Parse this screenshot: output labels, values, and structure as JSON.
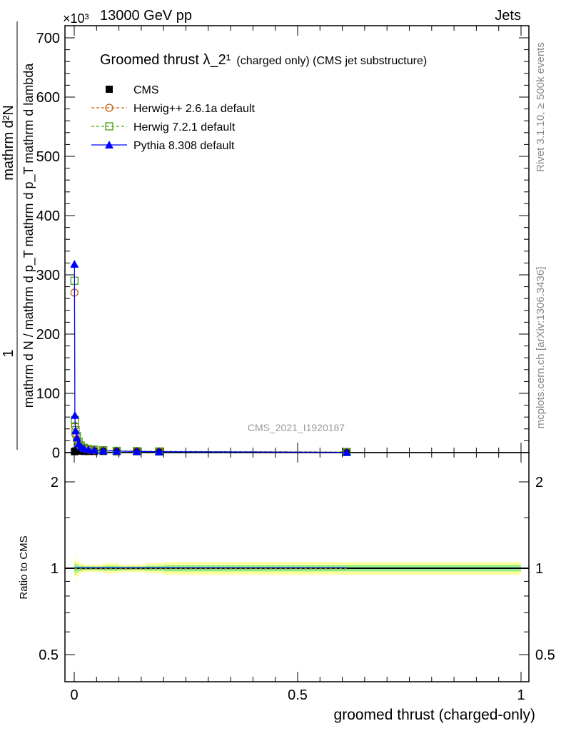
{
  "chart_data": {
    "type": "line",
    "header_left": "13000 GeV pp",
    "header_right": "Jets",
    "exponent_label": "×10³",
    "title": "Groomed thrust λ_2¹",
    "title_suffix": "(charged only) (CMS jet substructure)",
    "ylabel": "1 / mathrm d N / mathrm d p_T mathrm d p_T mathrm d lambda · mathrm d²N",
    "ylabel_top": "mathrm d²N",
    "ylabel_bottom": "mathrm d N / mathrm d p_T mathrm d p_T mathrm d lambda",
    "ylabel_one": "1",
    "xlabel": "groomed thrust (charged-only)",
    "ratio_ylabel": "Ratio to CMS",
    "watermark": "CMS_2021_I1920187",
    "right_label_top": "Rivet 3.1.10, ≥ 500k events",
    "right_label_bottom": "mcplots.cern.ch [arXiv:1306.3436]",
    "xlim": [
      0,
      1
    ],
    "ylim": [
      0,
      720
    ],
    "yticks": [
      0,
      100,
      200,
      300,
      400,
      500,
      600,
      700
    ],
    "xticks": [
      0,
      0.5,
      1
    ],
    "xtick_labels": [
      "0",
      "0.5",
      "1"
    ],
    "ratio_ylim": [
      0.4,
      2.5
    ],
    "ratio_yticks": [
      0.5,
      1,
      2
    ],
    "ratio_ytick_labels": [
      "0.5",
      "1",
      "2"
    ],
    "x": [
      0.0005,
      0.0015,
      0.003,
      0.006,
      0.01,
      0.015,
      0.022,
      0.032,
      0.045,
      0.065,
      0.095,
      0.14,
      0.19,
      0.61
    ],
    "series": [
      {
        "name": "CMS",
        "color": "#000000",
        "marker": "square",
        "values": [
          1.5,
          2,
          2.5,
          3,
          3,
          2.5,
          2,
          2,
          2,
          2,
          1.5,
          1.5,
          1,
          0.5
        ]
      },
      {
        "name": "Herwig++ 2.6.1a default",
        "color": "#c06010",
        "marker": "circle",
        "values": [
          270,
          45,
          30,
          22,
          14,
          10,
          7,
          5,
          4,
          3.5,
          3,
          2.5,
          2,
          1
        ]
      },
      {
        "name": "Herwig 7.2.1 default",
        "color": "#40a010",
        "marker": "open-square",
        "values": [
          290,
          55,
          38,
          28,
          18,
          12,
          8,
          6,
          5,
          4,
          3,
          2.5,
          2,
          1
        ]
      },
      {
        "name": "Pythia 8.308 default",
        "color": "#0000ff",
        "marker": "triangle",
        "values": [
          318,
          63,
          37,
          25,
          15,
          10,
          7,
          5,
          4,
          3,
          2.5,
          2,
          1.5,
          0.5
        ]
      }
    ],
    "ratio_band": {
      "edges": [
        0,
        0.002,
        0.004,
        0.01,
        0.02,
        0.05,
        0.065,
        0.1,
        0.13,
        0.16,
        0.2,
        0.5,
        1.0
      ],
      "yellow": [
        0.06,
        0.1,
        0.06,
        0.04,
        0.03,
        0.03,
        0.04,
        0.03,
        0.03,
        0.04,
        0.05,
        0.05
      ],
      "green": [
        0.03,
        0.05,
        0.03,
        0.02,
        0.015,
        0.015,
        0.02,
        0.015,
        0.015,
        0.02,
        0.025,
        0.025
      ]
    }
  }
}
